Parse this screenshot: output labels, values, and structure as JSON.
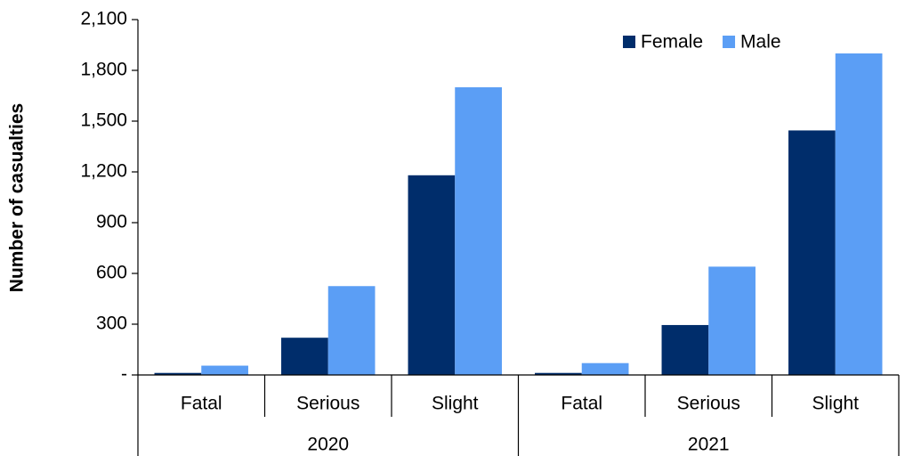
{
  "chart_data": {
    "type": "bar",
    "y_label": "Number of casualties",
    "categories": [
      "Fatal",
      "Serious",
      "Slight",
      "Fatal",
      "Serious",
      "Slight"
    ],
    "groups": [
      "2020",
      "2021"
    ],
    "series": [
      {
        "name": "Female",
        "color": "#002d6b",
        "values": [
          12,
          220,
          1180,
          12,
          295,
          1445
        ]
      },
      {
        "name": "Male",
        "color": "#5b9ef5",
        "values": [
          55,
          525,
          1700,
          70,
          640,
          1900
        ]
      }
    ],
    "ylim": [
      0,
      2100
    ],
    "yticks": [
      {
        "value": 0,
        "label": "-"
      },
      300,
      600,
      900,
      {
        "value": 1200,
        "label": "1,200"
      },
      {
        "value": 1500,
        "label": "1,500"
      },
      {
        "value": 1800,
        "label": "1,800"
      },
      {
        "value": 2100,
        "label": "2,100"
      }
    ],
    "legend": "top-right",
    "grid": false
  }
}
